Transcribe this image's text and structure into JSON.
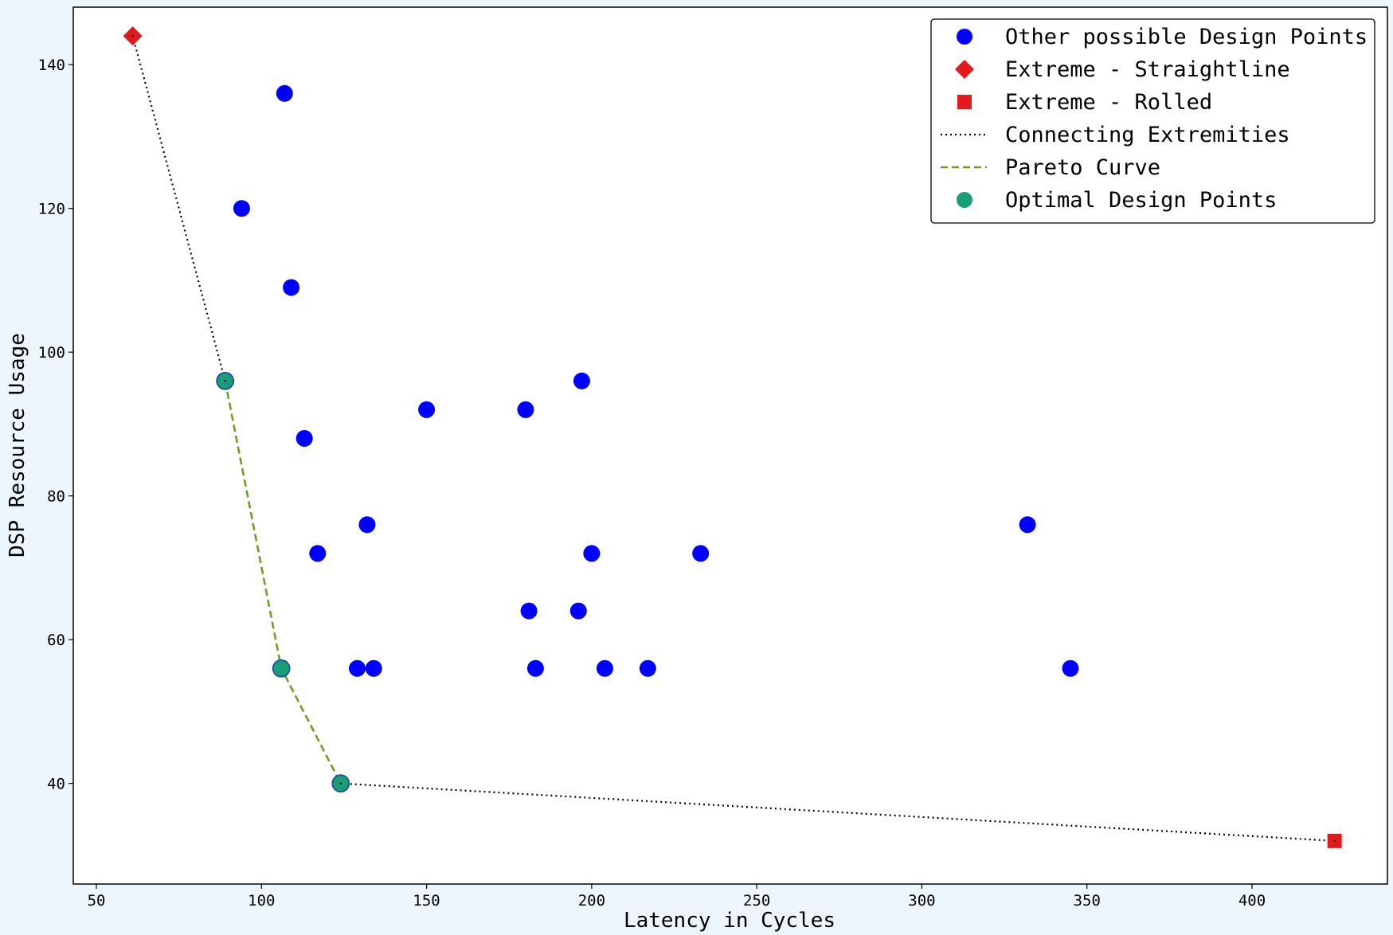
{
  "chart_data": {
    "type": "scatter",
    "title": "",
    "xlabel": "Latency in Cycles",
    "ylabel": "DSP Resource Usage",
    "xlim": [
      43,
      441
    ],
    "ylim": [
      26,
      148
    ],
    "xticks": [
      50,
      100,
      150,
      200,
      250,
      300,
      350,
      400
    ],
    "yticks": [
      40,
      60,
      80,
      100,
      120,
      140
    ],
    "grid": false,
    "legend_position": "top-right",
    "series": [
      {
        "name": "Other possible Design Points",
        "marker": "circle",
        "color": "#0000ff",
        "points": [
          {
            "x": 107,
            "y": 136
          },
          {
            "x": 94,
            "y": 120
          },
          {
            "x": 109,
            "y": 109
          },
          {
            "x": 113,
            "y": 88
          },
          {
            "x": 117,
            "y": 72
          },
          {
            "x": 132,
            "y": 76
          },
          {
            "x": 129,
            "y": 56
          },
          {
            "x": 134,
            "y": 56
          },
          {
            "x": 150,
            "y": 92
          },
          {
            "x": 180,
            "y": 92
          },
          {
            "x": 197,
            "y": 96
          },
          {
            "x": 181,
            "y": 64
          },
          {
            "x": 196,
            "y": 64
          },
          {
            "x": 200,
            "y": 72
          },
          {
            "x": 233,
            "y": 72
          },
          {
            "x": 183,
            "y": 56
          },
          {
            "x": 204,
            "y": 56
          },
          {
            "x": 217,
            "y": 56
          },
          {
            "x": 332,
            "y": 76
          },
          {
            "x": 345,
            "y": 56
          }
        ]
      },
      {
        "name": "Extreme - Straightline",
        "marker": "diamond",
        "color": "#e31a1c",
        "points": [
          {
            "x": 61,
            "y": 144
          }
        ]
      },
      {
        "name": "Extreme - Rolled",
        "marker": "square",
        "color": "#e31a1c",
        "points": [
          {
            "x": 425,
            "y": 32
          }
        ]
      },
      {
        "name": "Connecting Extremities",
        "marker": "dotted-line",
        "color": "#000000",
        "segments": [
          [
            {
              "x": 61,
              "y": 144
            },
            {
              "x": 89,
              "y": 96
            }
          ],
          [
            {
              "x": 124,
              "y": 40
            },
            {
              "x": 425,
              "y": 32
            }
          ]
        ]
      },
      {
        "name": "Pareto Curve",
        "marker": "dashed-line",
        "color": "#6aa121",
        "points": [
          {
            "x": 89,
            "y": 96
          },
          {
            "x": 106,
            "y": 56
          },
          {
            "x": 124,
            "y": 40
          }
        ]
      },
      {
        "name": "Optimal Design Points",
        "marker": "circle",
        "color": "#1b9e77",
        "points": [
          {
            "x": 89,
            "y": 96
          },
          {
            "x": 106,
            "y": 56
          },
          {
            "x": 124,
            "y": 40
          }
        ]
      }
    ]
  }
}
